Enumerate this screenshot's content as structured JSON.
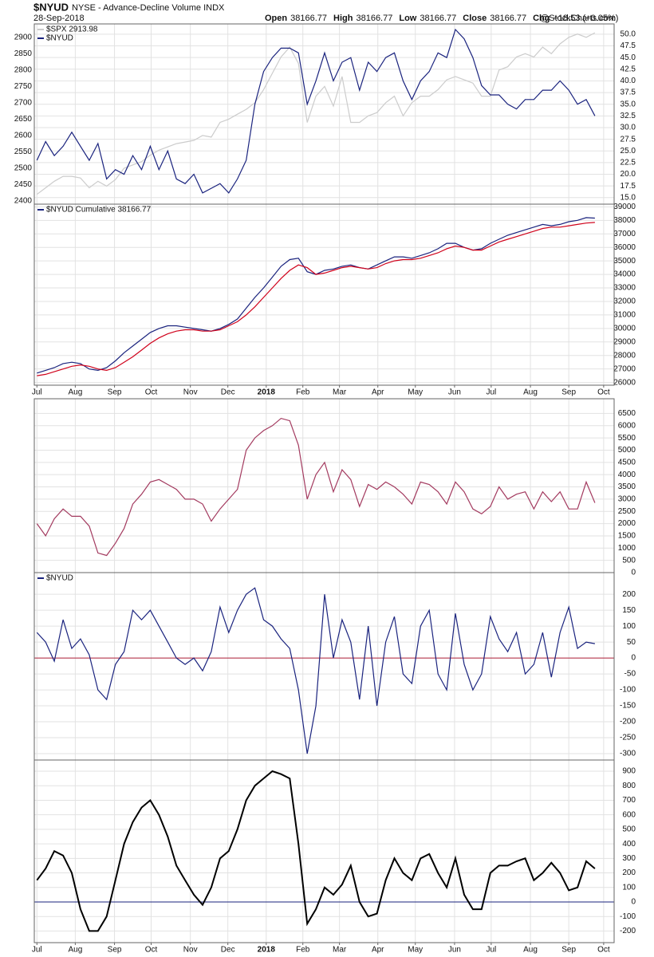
{
  "header": {
    "symbol": "$NYUD",
    "description": "NYSE - Advance-Decline Volume INDX",
    "date": "28-Sep-2018",
    "quote": [
      {
        "label": "Open",
        "value": "38166.77"
      },
      {
        "label": "High",
        "value": "38166.77"
      },
      {
        "label": "Low",
        "value": "38166.77"
      },
      {
        "label": "Close",
        "value": "38166.77"
      },
      {
        "label": "Chg",
        "value": "+18.53 (+0.05%)"
      }
    ],
    "watermark": "@StockCharts.com"
  },
  "chart_data": [
    {
      "type": "line",
      "grid": true,
      "xlim": [
        -0.3,
        66.2
      ],
      "ylim": [
        2390,
        2941
      ],
      "yticks": [
        2400,
        2450,
        2500,
        2550,
        2600,
        2650,
        2700,
        2750,
        2800,
        2850,
        2900
      ],
      "y2lim": [
        13.6,
        52.2
      ],
      "y2ticks": [
        {
          "value": 15,
          "label": "15.0"
        },
        {
          "value": 17.5,
          "label": "17.5"
        },
        {
          "value": 20,
          "label": "20.0"
        },
        {
          "value": 22.5,
          "label": "22.5"
        },
        {
          "value": 25,
          "label": "25.0"
        },
        {
          "value": 27.5,
          "label": "27.5"
        },
        {
          "value": 30,
          "label": "30.0"
        },
        {
          "value": 32.5,
          "label": "32.5"
        },
        {
          "value": 35,
          "label": "35.0"
        },
        {
          "value": 37.5,
          "label": "37.5"
        },
        {
          "value": 40,
          "label": "40.0"
        },
        {
          "value": 42.5,
          "label": "42.5"
        },
        {
          "value": 45,
          "label": "45.0"
        },
        {
          "value": 47.5,
          "label": "47.5"
        },
        {
          "value": 50,
          "label": "50.0"
        }
      ],
      "series": [
        {
          "name": "$SPX 2913.98",
          "color": "#cccccc",
          "values": [
            2420,
            2440,
            2460,
            2475,
            2475,
            2470,
            2440,
            2460,
            2445,
            2465,
            2500,
            2510,
            2520,
            2540,
            2555,
            2565,
            2575,
            2580,
            2585,
            2600,
            2595,
            2640,
            2650,
            2665,
            2680,
            2700,
            2740,
            2790,
            2840,
            2870,
            2820,
            2640,
            2720,
            2750,
            2690,
            2780,
            2640,
            2640,
            2660,
            2670,
            2700,
            2720,
            2660,
            2700,
            2720,
            2720,
            2740,
            2770,
            2780,
            2770,
            2760,
            2720,
            2720,
            2800,
            2810,
            2840,
            2850,
            2840,
            2870,
            2850,
            2880,
            2900,
            2910,
            2900,
            2914
          ]
        },
        {
          "name": "$NYUD",
          "color": "#1a237e",
          "axis": "y2",
          "values": [
            23,
            27,
            24,
            26,
            29,
            26,
            23,
            26.6,
            19,
            21,
            20,
            24,
            21,
            26,
            21,
            25,
            19,
            18,
            20,
            16,
            17,
            18,
            16,
            19,
            23,
            35,
            42,
            45,
            47,
            47,
            46,
            35,
            40,
            46,
            40,
            44,
            45,
            38,
            44,
            42,
            45,
            46,
            40,
            36,
            40,
            42,
            46,
            45,
            51,
            49,
            45,
            39,
            37,
            37,
            35,
            34,
            36,
            36,
            38,
            38,
            40,
            38,
            35,
            36,
            32.5
          ]
        }
      ]
    },
    {
      "type": "line",
      "grid": true,
      "xlim": [
        -0.3,
        66.2
      ],
      "ylim": [
        25800,
        39200
      ],
      "yticks": [
        26000,
        27000,
        28000,
        29000,
        30000,
        31000,
        32000,
        33000,
        34000,
        35000,
        36000,
        37000,
        38000,
        39000
      ],
      "xticks": [
        {
          "value": 0,
          "label": "Jul"
        },
        {
          "value": 4.4,
          "label": "Aug"
        },
        {
          "value": 8.9,
          "label": "Sep"
        },
        {
          "value": 13.1,
          "label": "Oct"
        },
        {
          "value": 17.6,
          "label": "Nov"
        },
        {
          "value": 21.9,
          "label": "Dec"
        },
        {
          "value": 26.3,
          "label": "2018"
        },
        {
          "value": 30.5,
          "label": "Feb"
        },
        {
          "value": 34.7,
          "label": "Mar"
        },
        {
          "value": 39.1,
          "label": "Apr"
        },
        {
          "value": 43.4,
          "label": "May"
        },
        {
          "value": 47.9,
          "label": "Jun"
        },
        {
          "value": 52.1,
          "label": "Jul"
        },
        {
          "value": 56.6,
          "label": "Aug"
        },
        {
          "value": 61,
          "label": "Sep"
        },
        {
          "value": 65,
          "label": "Oct"
        }
      ],
      "series": [
        {
          "name": "$NYUD Cumulative 38166.77",
          "color": "#1a237e",
          "values": [
            26700,
            26900,
            27100,
            27400,
            27500,
            27400,
            27000,
            26900,
            27100,
            27600,
            28200,
            28700,
            29200,
            29700,
            30000,
            30200,
            30200,
            30100,
            30000,
            29900,
            29800,
            30000,
            30300,
            30700,
            31500,
            32300,
            33000,
            33800,
            34600,
            35100,
            35200,
            34200,
            34000,
            34300,
            34400,
            34600,
            34700,
            34500,
            34400,
            34700,
            35000,
            35300,
            35300,
            35200,
            35400,
            35600,
            35900,
            36300,
            36300,
            36000,
            35800,
            35900,
            36300,
            36600,
            36900,
            37100,
            37300,
            37500,
            37700,
            37600,
            37700,
            37900,
            38000,
            38200,
            38167
          ]
        },
        {
          "color": "#d0021b",
          "values": [
            26500,
            26600,
            26800,
            27000,
            27200,
            27300,
            27200,
            27000,
            26900,
            27100,
            27500,
            27900,
            28400,
            28900,
            29300,
            29600,
            29800,
            29900,
            29900,
            29800,
            29800,
            29900,
            30200,
            30500,
            31000,
            31600,
            32300,
            33000,
            33700,
            34300,
            34700,
            34500,
            34000,
            34100,
            34300,
            34500,
            34600,
            34500,
            34400,
            34500,
            34800,
            35000,
            35100,
            35100,
            35200,
            35400,
            35600,
            35900,
            36100,
            36000,
            35800,
            35800,
            36100,
            36400,
            36600,
            36800,
            37000,
            37200,
            37400,
            37500,
            37500,
            37600,
            37700,
            37800,
            37850
          ]
        }
      ]
    },
    {
      "type": "line",
      "grid": true,
      "xlim": [
        -0.3,
        66.2
      ],
      "ylim": [
        0,
        7100
      ],
      "yticks": [
        0,
        500,
        1000,
        1500,
        2000,
        2500,
        3000,
        3500,
        4000,
        4500,
        5000,
        5500,
        6000,
        6500
      ],
      "series": [
        {
          "color": "#a33a5f",
          "values": [
            2000,
            1500,
            2200,
            2600,
            2300,
            2300,
            1900,
            800,
            700,
            1200,
            1800,
            2800,
            3200,
            3700,
            3800,
            3600,
            3400,
            3000,
            3000,
            2800,
            2100,
            2600,
            3000,
            3400,
            5000,
            5500,
            5800,
            6000,
            6300,
            6200,
            5200,
            3000,
            4000,
            4500,
            3300,
            4200,
            3800,
            2700,
            3600,
            3400,
            3700,
            3500,
            3200,
            2800,
            3700,
            3600,
            3300,
            2800,
            3700,
            3300,
            2600,
            2400,
            2700,
            3500,
            3000,
            3200,
            3300,
            2600,
            3300,
            2900,
            3300,
            2600,
            2600,
            3700,
            2850
          ]
        }
      ]
    },
    {
      "type": "line",
      "grid": true,
      "xlim": [
        -0.3,
        66.2
      ],
      "zero_line_color": "#b0203a",
      "ylim": [
        -320,
        268
      ],
      "yticks": [
        -300,
        -250,
        -200,
        -150,
        -100,
        -50,
        0,
        50,
        100,
        150,
        200
      ],
      "series": [
        {
          "name": "$NYUD",
          "color": "#1a237e",
          "values": [
            80,
            50,
            -10,
            120,
            30,
            60,
            10,
            -100,
            -130,
            -20,
            20,
            150,
            120,
            150,
            100,
            50,
            0,
            -20,
            0,
            -40,
            20,
            160,
            80,
            150,
            200,
            220,
            120,
            100,
            60,
            30,
            -100,
            -300,
            -150,
            200,
            0,
            120,
            50,
            -130,
            100,
            -150,
            50,
            130,
            -50,
            -80,
            100,
            150,
            -50,
            -100,
            140,
            -20,
            -100,
            -50,
            130,
            60,
            20,
            80,
            -50,
            -20,
            80,
            -60,
            80,
            160,
            30,
            50,
            45
          ]
        }
      ]
    },
    {
      "type": "line",
      "grid": true,
      "xlim": [
        -0.3,
        66.2
      ],
      "zero_line_color": "#1a237e",
      "ylim": [
        -280,
        977
      ],
      "yticks": [
        -200,
        -100,
        0,
        100,
        200,
        300,
        400,
        500,
        600,
        700,
        800,
        900
      ],
      "xticks": [
        {
          "value": 0,
          "label": "Jul"
        },
        {
          "value": 4.4,
          "label": "Aug"
        },
        {
          "value": 8.9,
          "label": "Sep"
        },
        {
          "value": 13.1,
          "label": "Oct"
        },
        {
          "value": 17.6,
          "label": "Nov"
        },
        {
          "value": 21.9,
          "label": "Dec"
        },
        {
          "value": 26.3,
          "label": "2018"
        },
        {
          "value": 30.5,
          "label": "Feb"
        },
        {
          "value": 34.7,
          "label": "Mar"
        },
        {
          "value": 39.1,
          "label": "Apr"
        },
        {
          "value": 43.4,
          "label": "May"
        },
        {
          "value": 47.9,
          "label": "Jun"
        },
        {
          "value": 52.1,
          "label": "Jul"
        },
        {
          "value": 56.6,
          "label": "Aug"
        },
        {
          "value": 61,
          "label": "Sep"
        },
        {
          "value": 65,
          "label": "Oct"
        }
      ],
      "series": [
        {
          "color": "#000000",
          "values": [
            150,
            230,
            350,
            320,
            200,
            -50,
            -200,
            -200,
            -100,
            150,
            400,
            550,
            650,
            700,
            600,
            450,
            250,
            150,
            50,
            -20,
            100,
            300,
            350,
            500,
            700,
            800,
            850,
            900,
            880,
            850,
            400,
            -150,
            -50,
            100,
            50,
            120,
            250,
            0,
            -100,
            -80,
            150,
            300,
            200,
            150,
            300,
            330,
            200,
            100,
            300,
            50,
            -50,
            -50,
            200,
            250,
            250,
            280,
            300,
            150,
            200,
            270,
            200,
            80,
            100,
            280,
            230
          ]
        }
      ]
    }
  ]
}
